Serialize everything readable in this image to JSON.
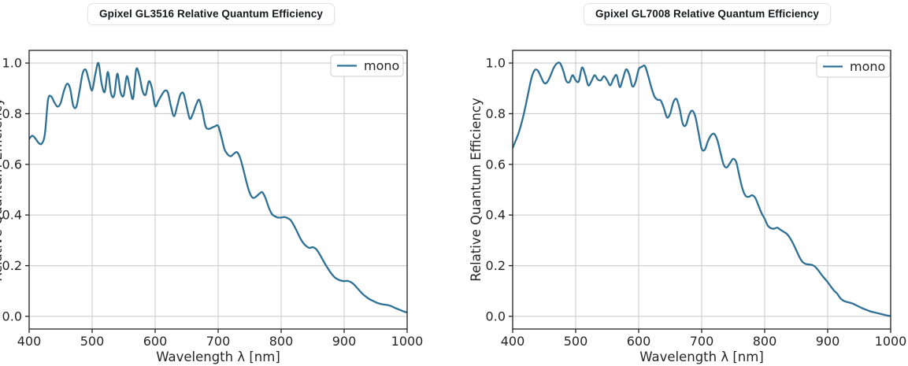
{
  "styles": {
    "background": "#ffffff",
    "line_color": "#2e7194",
    "grid_color": "#cccccc",
    "spine_color": "#222222",
    "tick_text_color": "#262626",
    "title_text_color": "#17191e",
    "title_border_color": "#e4e4e8",
    "legend_border_color": "#cccccc",
    "legend_fill": "rgba(255,255,255,0.85)"
  },
  "chart_data": [
    {
      "type": "line",
      "title": "Gpixel GL3516 Relative Quantum Efficiency",
      "xlabel": "Wavelength λ [nm]",
      "ylabel": "Relative Quantum Efficiency",
      "ylabel_note": "y-axis label clipped off at left edge of image",
      "xlim": [
        400,
        1000
      ],
      "ylim": [
        -0.05,
        1.05
      ],
      "xticks": [
        400,
        500,
        600,
        700,
        800,
        900,
        1000
      ],
      "yticks": [
        0.0,
        0.2,
        0.4,
        0.6,
        0.8,
        1.0
      ],
      "ytick_labels": [
        "0.0",
        "0.2",
        "0.4",
        "0.6",
        "0.8",
        "1.0"
      ],
      "grid": true,
      "legend": {
        "position": "upper right",
        "entries": [
          "mono"
        ]
      },
      "series": [
        {
          "name": "mono",
          "color": "#2e7194",
          "x": {
            "start": 400,
            "step": 5,
            "count": 121,
            "unit": "nm"
          },
          "y": [
            0.7,
            0.713,
            0.702,
            0.685,
            0.682,
            0.72,
            0.855,
            0.868,
            0.845,
            0.828,
            0.842,
            0.888,
            0.918,
            0.9,
            0.832,
            0.828,
            0.89,
            0.96,
            0.973,
            0.93,
            0.892,
            0.955,
            1.0,
            0.92,
            0.886,
            0.965,
            0.88,
            0.872,
            0.958,
            0.885,
            0.872,
            0.948,
            0.9,
            0.86,
            0.975,
            0.95,
            0.89,
            0.875,
            0.928,
            0.9,
            0.83,
            0.85,
            0.872,
            0.89,
            0.885,
            0.83,
            0.79,
            0.83,
            0.875,
            0.88,
            0.83,
            0.78,
            0.8,
            0.835,
            0.855,
            0.81,
            0.75,
            0.74,
            0.745,
            0.75,
            0.752,
            0.71,
            0.66,
            0.64,
            0.632,
            0.642,
            0.648,
            0.625,
            0.58,
            0.53,
            0.488,
            0.468,
            0.472,
            0.483,
            0.49,
            0.468,
            0.432,
            0.405,
            0.395,
            0.39,
            0.39,
            0.392,
            0.388,
            0.38,
            0.36,
            0.336,
            0.31,
            0.29,
            0.277,
            0.27,
            0.273,
            0.267,
            0.25,
            0.228,
            0.206,
            0.186,
            0.168,
            0.154,
            0.146,
            0.141,
            0.139,
            0.14,
            0.136,
            0.127,
            0.114,
            0.1,
            0.087,
            0.077,
            0.068,
            0.062,
            0.056,
            0.051,
            0.048,
            0.046,
            0.044,
            0.04,
            0.034,
            0.029,
            0.024,
            0.019,
            0.015
          ]
        }
      ]
    },
    {
      "type": "line",
      "title": "Gpixel GL7008 Relative Quantum Efficiency",
      "xlabel": "Wavelength λ [nm]",
      "ylabel": "Relative Quantum Efficiency",
      "xlim": [
        400,
        1000
      ],
      "ylim": [
        -0.05,
        1.05
      ],
      "xticks": [
        400,
        500,
        600,
        700,
        800,
        900,
        1000
      ],
      "yticks": [
        0.0,
        0.2,
        0.4,
        0.6,
        0.8,
        1.0
      ],
      "ytick_labels": [
        "0.0",
        "0.2",
        "0.4",
        "0.6",
        "0.8",
        "1.0"
      ],
      "grid": true,
      "legend": {
        "position": "upper right",
        "entries": [
          "mono"
        ]
      },
      "series": [
        {
          "name": "mono",
          "color": "#2e7194",
          "x": {
            "start": 400,
            "step": 5,
            "count": 121,
            "unit": "nm"
          },
          "y": [
            0.665,
            0.695,
            0.728,
            0.772,
            0.825,
            0.885,
            0.942,
            0.972,
            0.97,
            0.945,
            0.921,
            0.925,
            0.95,
            0.98,
            0.998,
            1.0,
            0.972,
            0.93,
            0.925,
            0.952,
            0.932,
            0.928,
            0.982,
            0.955,
            0.912,
            0.928,
            0.952,
            0.935,
            0.932,
            0.948,
            0.932,
            0.912,
            0.938,
            0.952,
            0.905,
            0.938,
            0.975,
            0.955,
            0.908,
            0.925,
            0.975,
            0.985,
            0.988,
            0.95,
            0.905,
            0.868,
            0.855,
            0.852,
            0.822,
            0.785,
            0.8,
            0.845,
            0.858,
            0.82,
            0.76,
            0.755,
            0.795,
            0.812,
            0.788,
            0.725,
            0.662,
            0.658,
            0.692,
            0.715,
            0.72,
            0.695,
            0.645,
            0.598,
            0.588,
            0.605,
            0.622,
            0.608,
            0.552,
            0.502,
            0.475,
            0.472,
            0.478,
            0.468,
            0.438,
            0.408,
            0.385,
            0.358,
            0.348,
            0.346,
            0.35,
            0.342,
            0.334,
            0.326,
            0.31,
            0.288,
            0.262,
            0.235,
            0.215,
            0.207,
            0.205,
            0.203,
            0.196,
            0.182,
            0.165,
            0.15,
            0.135,
            0.118,
            0.102,
            0.09,
            0.072,
            0.062,
            0.057,
            0.054,
            0.05,
            0.044,
            0.038,
            0.032,
            0.027,
            0.022,
            0.018,
            0.015,
            0.012,
            0.009,
            0.006,
            0.003,
            0.001
          ]
        }
      ]
    }
  ]
}
